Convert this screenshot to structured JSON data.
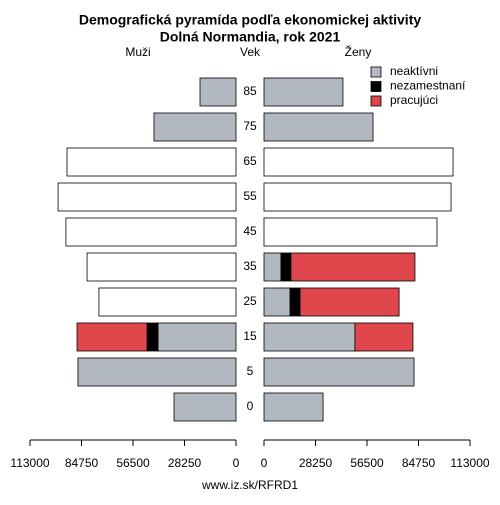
{
  "chart_data": {
    "type": "pyramid",
    "title": "Demografická pyramída podľa ekonomickej aktivity",
    "subtitle": "Dolná Normandia, rok 2021",
    "center_label": "Vek",
    "footer": "www.iz.sk/RFRD1",
    "categories": [
      "0",
      "5",
      "15",
      "25",
      "35",
      "45",
      "55",
      "65",
      "75",
      "85"
    ],
    "panels": [
      {
        "label": "Muži",
        "side": "left",
        "xlim": [
          0,
          113000
        ],
        "xticks": [
          0,
          28250,
          56500,
          84750,
          113000
        ],
        "series": [
          {
            "color": "#ffffff",
            "values": [
              null,
              null,
              null,
              75200,
              81700,
              93300,
              97600,
              92700,
              null,
              null
            ]
          },
          {
            "name": "neaktívni",
            "color": "#b2b8c0",
            "values": [
              34000,
              86700,
              42800,
              null,
              null,
              null,
              null,
              null,
              45000,
              19750
            ]
          },
          {
            "name": "nezamestnaní",
            "color": "#000000",
            "values": [
              null,
              null,
              6000,
              null,
              null,
              null,
              null,
              null,
              null,
              null
            ]
          },
          {
            "name": "pracujúci",
            "color": "#e0474c",
            "values": [
              null,
              null,
              38400,
              null,
              null,
              null,
              null,
              null,
              null,
              null
            ]
          }
        ]
      },
      {
        "label": "Ženy",
        "side": "right",
        "xlim": [
          0,
          113000
        ],
        "xticks": [
          0,
          28250,
          56500,
          84750,
          113000
        ],
        "series": [
          {
            "color": "#ffffff",
            "values": [
              null,
              null,
              null,
              null,
              null,
              94900,
              102600,
              103700,
              null,
              null
            ]
          },
          {
            "name": "neaktívni",
            "color": "#b2b8c0",
            "values": [
              32400,
              82300,
              49900,
              14300,
              9300,
              null,
              null,
              null,
              59800,
              43300
            ]
          },
          {
            "name": "nezamestnaní",
            "color": "#000000",
            "values": [
              null,
              null,
              null,
              5500,
              5500,
              null,
              null,
              null,
              null,
              null
            ]
          },
          {
            "name": "pracujúci",
            "color": "#e0474c",
            "values": [
              null,
              null,
              31800,
              54300,
              68000,
              null,
              null,
              null,
              null,
              null
            ]
          }
        ]
      }
    ]
  }
}
